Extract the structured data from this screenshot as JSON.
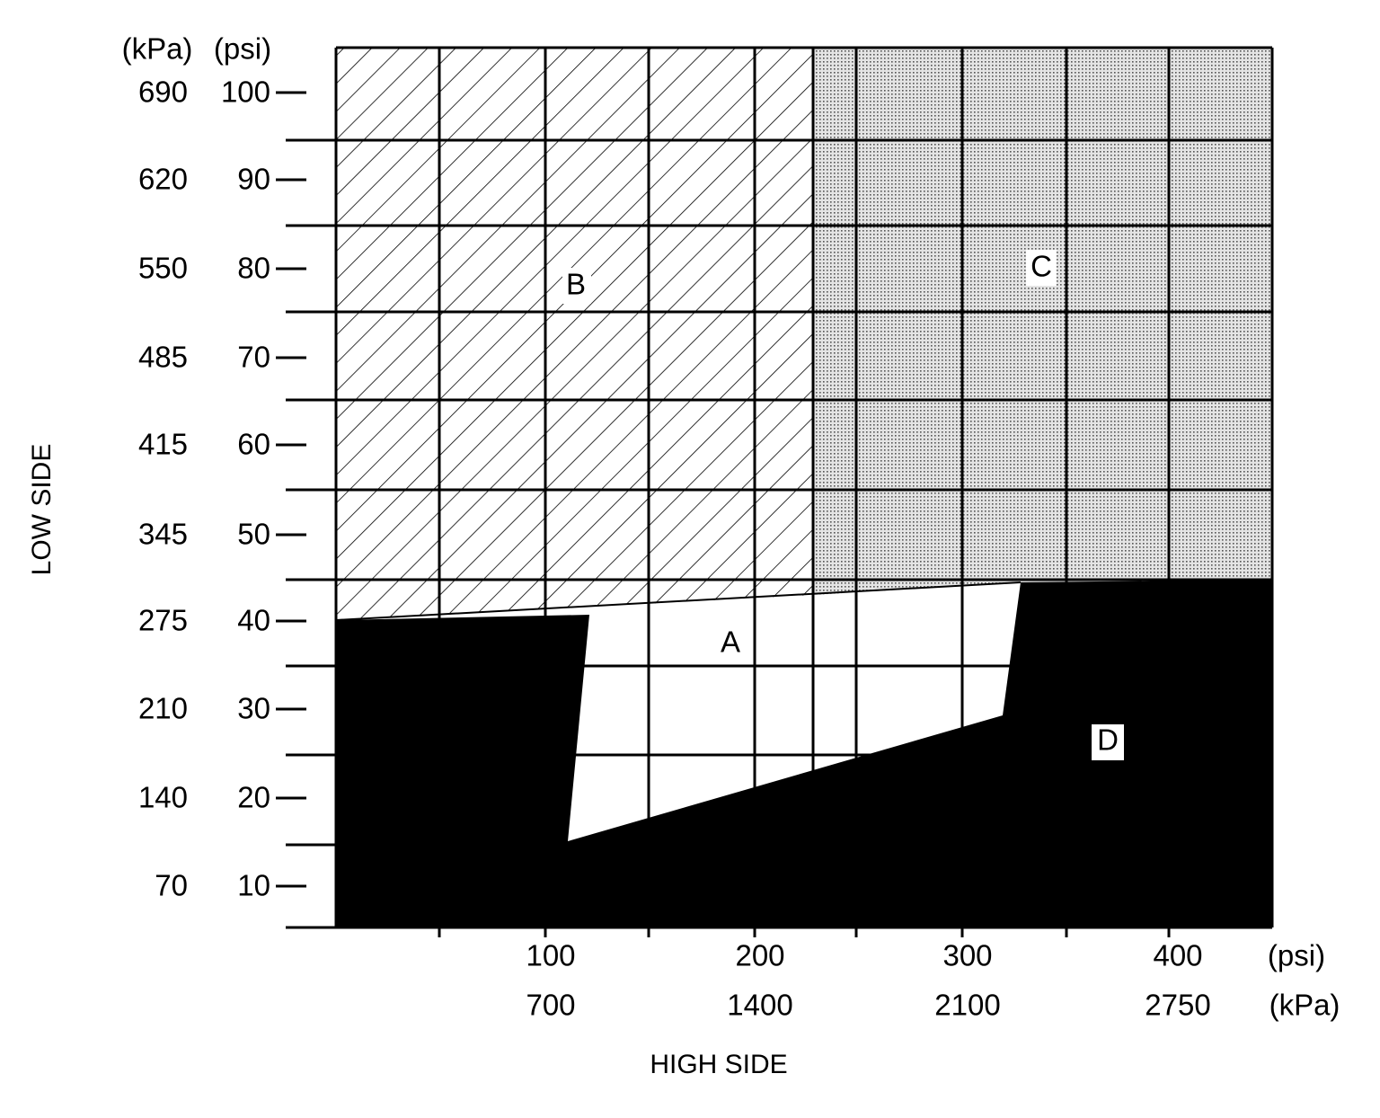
{
  "y_axis": {
    "title": "LOW SIDE",
    "kpa_unit": "(kPa)",
    "psi_unit": "(psi)",
    "kpa_labels": [
      "690",
      "620",
      "550",
      "485",
      "415",
      "345",
      "275",
      "210",
      "140",
      "70"
    ],
    "psi_labels": [
      "100",
      "90",
      "80",
      "70",
      "60",
      "50",
      "40",
      "30",
      "20",
      "10"
    ]
  },
  "x_axis": {
    "title": "HIGH SIDE",
    "psi_unit": "(psi)",
    "kpa_unit": "(kPa)",
    "psi_labels": [
      "100",
      "200",
      "300",
      "400"
    ],
    "kpa_labels": [
      "700",
      "1400",
      "2100",
      "2750"
    ]
  },
  "regions": {
    "a": "A",
    "b": "B",
    "c": "C",
    "d": "D"
  }
}
